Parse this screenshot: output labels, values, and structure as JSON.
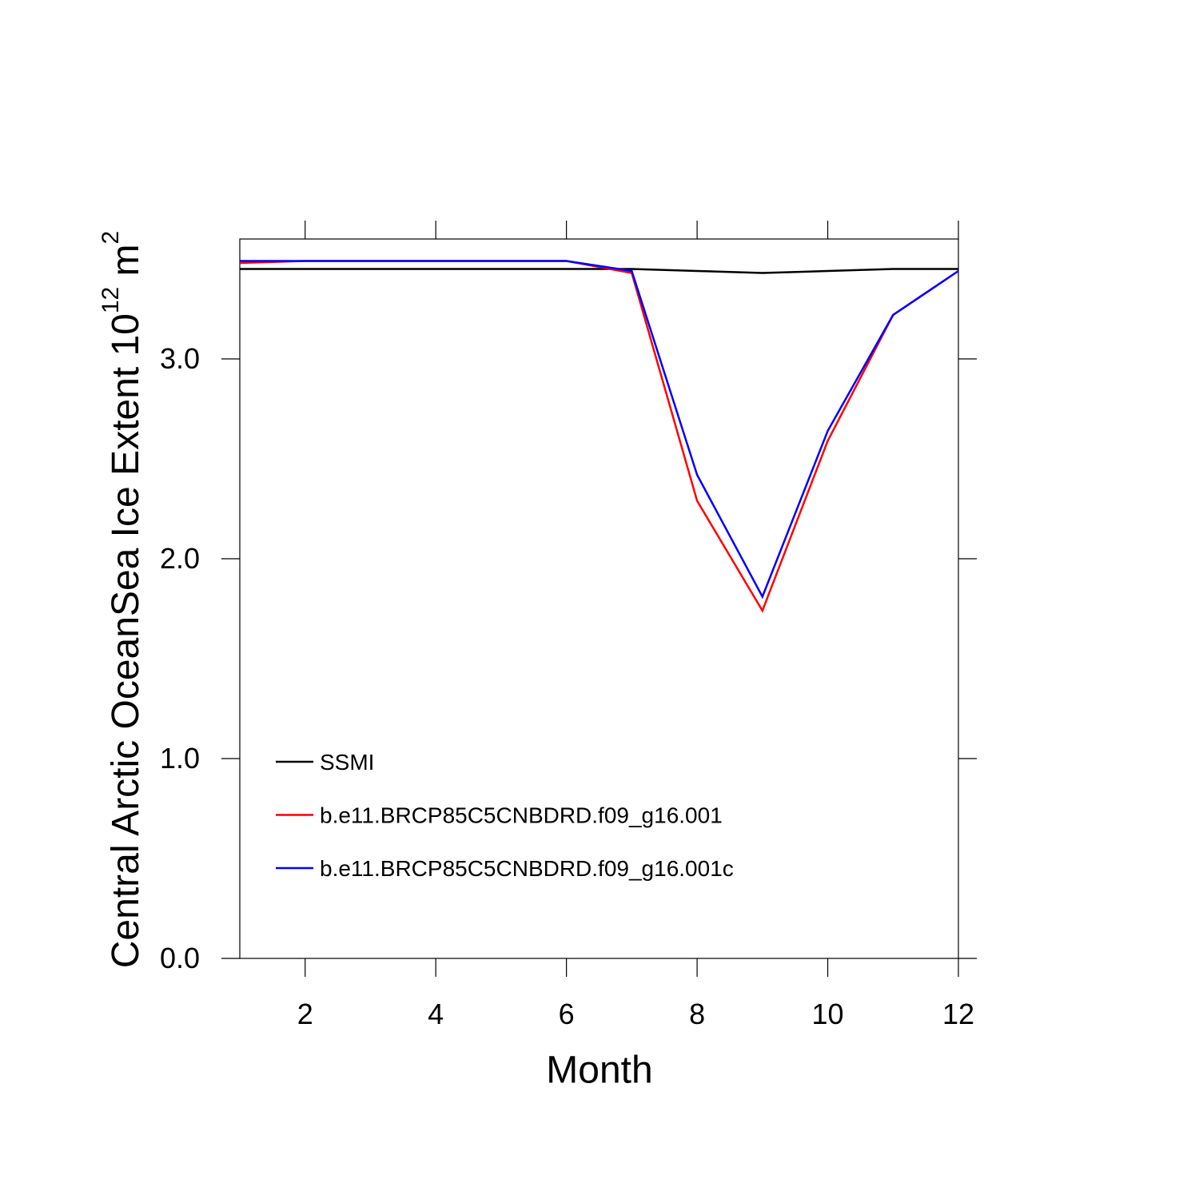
{
  "chart_data": {
    "type": "line",
    "xlabel": "Month",
    "ylabel": [
      "Central Arctic OceanSea Ice Extent 10",
      "12",
      " m",
      "2"
    ],
    "x": [
      1,
      2,
      3,
      4,
      5,
      6,
      7,
      8,
      9,
      10,
      11,
      12
    ],
    "xlim": [
      1,
      12
    ],
    "xticks": [
      2,
      4,
      6,
      8,
      10,
      12
    ],
    "ylim": [
      0,
      3.6
    ],
    "yticks": [
      {
        "value": 0,
        "label": "0.0"
      },
      {
        "value": 1,
        "label": "1.0"
      },
      {
        "value": 2,
        "label": "2.0"
      },
      {
        "value": 3,
        "label": "3.0"
      }
    ],
    "legend": "lower left",
    "series": [
      {
        "name": "SSMI",
        "color": "#000000",
        "values": [
          3.45,
          3.45,
          3.45,
          3.45,
          3.45,
          3.45,
          3.45,
          3.44,
          3.43,
          3.44,
          3.45,
          3.45
        ]
      },
      {
        "name": "b.e11.BRCP85C5CNBDRD.f09_g16.001",
        "color": "#ff0000",
        "values": [
          3.48,
          3.49,
          3.49,
          3.49,
          3.49,
          3.49,
          3.43,
          2.29,
          1.74,
          2.59,
          3.22,
          3.44
        ]
      },
      {
        "name": "b.e11.BRCP85C5CNBDRD.f09_g16.001c",
        "color": "#0000ff",
        "values": [
          3.49,
          3.49,
          3.49,
          3.49,
          3.49,
          3.49,
          3.44,
          2.42,
          1.81,
          2.64,
          3.22,
          3.44
        ]
      }
    ]
  }
}
